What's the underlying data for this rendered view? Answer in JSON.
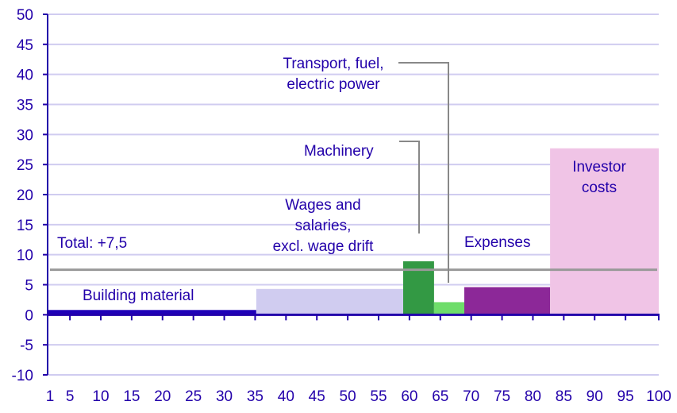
{
  "chart_data": {
    "type": "bar",
    "subtype": "variable-width bar (weight vs change)",
    "title": "",
    "xlabel": "",
    "ylabel": "",
    "ylim": [
      -10,
      50
    ],
    "xlim": [
      1,
      100
    ],
    "y_ticks": [
      "50",
      "45",
      "40",
      "35",
      "30",
      "25",
      "20",
      "15",
      "10",
      "5",
      "0",
      "-5",
      "-10"
    ],
    "x_ticks": [
      "1",
      "5",
      "10",
      "15",
      "20",
      "25",
      "30",
      "35",
      "40",
      "45",
      "50",
      "55",
      "60",
      "65",
      "70",
      "75",
      "80",
      "85",
      "90",
      "95",
      "100"
    ],
    "grid": true,
    "series": [
      {
        "name": "Building material",
        "x_start": 1,
        "x_end": 34.8,
        "value": 0.8,
        "color": "#1f00b8"
      },
      {
        "name": "Wages and salaries, excl. wage drift",
        "x_start": 34.8,
        "x_end": 58.6,
        "value": 4.3,
        "color": "#d0ccf0"
      },
      {
        "name": "Machinery",
        "x_start": 58.6,
        "x_end": 63.6,
        "value": 8.9,
        "color": "#339944"
      },
      {
        "name": "Transport, fuel, electric power",
        "x_start": 63.6,
        "x_end": 68.5,
        "value": 2.1,
        "color": "#6edd6a"
      },
      {
        "name": "Expenses",
        "x_start": 68.5,
        "x_end": 82.4,
        "value": 4.6,
        "color": "#8c2898"
      },
      {
        "name": "Investor costs",
        "x_start": 82.4,
        "x_end": 100,
        "value": 27.7,
        "color": "#f0c4e6"
      }
    ],
    "reference_line": {
      "label": "Total: +7,5",
      "value": 7.5,
      "color": "#999999"
    }
  },
  "labels": {
    "total": "Total: +7,5",
    "building": "Building material",
    "wages_1": "Wages and",
    "wages_2": "salaries,",
    "wages_3": "excl. wage drift",
    "machinery": "Machinery",
    "transport_1": "Transport, fuel,",
    "transport_2": "electric power",
    "expenses": "Expenses",
    "investor_1": "Investor",
    "investor_2": "costs"
  }
}
